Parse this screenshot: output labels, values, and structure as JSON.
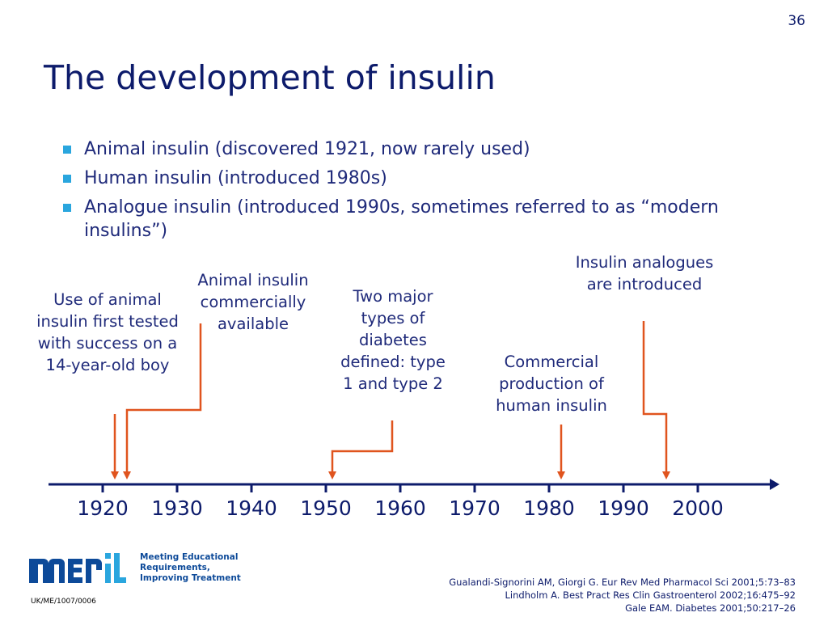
{
  "slide_number": "36",
  "title": "The development of insulin",
  "bullets": [
    "Animal insulin (discovered 1921, now rarely used)",
    "Human insulin (introduced 1980s)",
    "Analogue insulin (introduced 1990s, sometimes referred to as “modern insulins”)"
  ],
  "timeline": {
    "years": [
      "1920",
      "1930",
      "1940",
      "1950",
      "1960",
      "1970",
      "1980",
      "1990",
      "2000"
    ],
    "events": [
      {
        "year": 1922,
        "label": "Use of animal insulin first tested with success on a 14-year-old boy"
      },
      {
        "year": 1923,
        "label": "Animal insulin commercially available"
      },
      {
        "year": 1951,
        "label": "Two major types of diabetes defined: type 1 and type 2"
      },
      {
        "year": 1982,
        "label": "Commercial production of human insulin"
      },
      {
        "year": 1996,
        "label": "Insulin analogues are introduced"
      }
    ],
    "colors": {
      "axis": "#0d1b6b",
      "arrow": "#e0541e"
    }
  },
  "logo": {
    "name": "merit",
    "tagline": [
      "Meeting Educational",
      "Requirements,",
      "Improving Treatment"
    ],
    "colors": {
      "dark": "#0d4a99",
      "accent": "#2aa6de"
    }
  },
  "code": "UK/ME/1007/0006",
  "references": [
    "Gualandi-Signorini AM, Giorgi G. Eur Rev Med Pharmacol Sci 2001;5:73–83",
    "Lindholm A. Best Pract Res Clin Gastroenterol 2002;16:475–92",
    "Gale EAM. Diabetes 2001;50:217–26"
  ]
}
